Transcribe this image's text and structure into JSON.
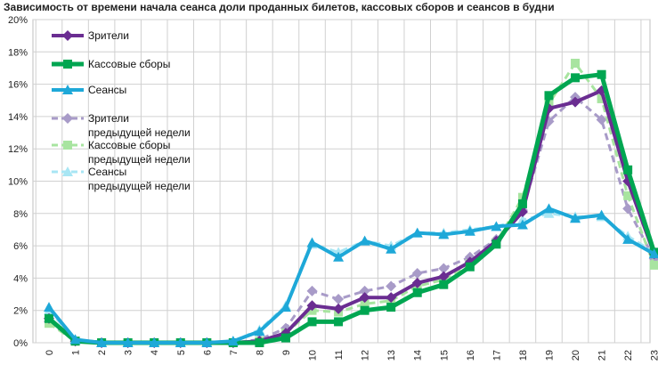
{
  "chart_data": {
    "type": "line",
    "title": "Зависимость от времени начала сеанса доли проданных билетов, кассовых сборов и сеансов в будни",
    "xlabel": "",
    "ylabel": "",
    "ylim": [
      0,
      20
    ],
    "y_ticks": [
      "0%",
      "2%",
      "4%",
      "6%",
      "8%",
      "10%",
      "12%",
      "14%",
      "16%",
      "18%",
      "20%"
    ],
    "categories": [
      "0",
      "1",
      "2",
      "3",
      "4",
      "5",
      "6",
      "7",
      "8",
      "9",
      "10",
      "11",
      "12",
      "13",
      "14",
      "15",
      "16",
      "17",
      "18",
      "19",
      "20",
      "21",
      "22",
      "23"
    ],
    "grid": true,
    "legend_position": "top-left",
    "series": [
      {
        "name": "Зрители",
        "legend_lines": [
          "Зрители"
        ],
        "color": "#6a2d91",
        "marker": "diamond",
        "dashed": false,
        "width": 4,
        "values": [
          1.5,
          0.1,
          0,
          0,
          0,
          0,
          0,
          0,
          0.1,
          0.6,
          2.3,
          2.1,
          2.8,
          2.8,
          3.7,
          4.1,
          5.0,
          6.3,
          8.1,
          14.5,
          14.9,
          15.6,
          10.0,
          5.5
        ]
      },
      {
        "name": "Кассовые сборы",
        "legend_lines": [
          "Кассовые сборы"
        ],
        "color": "#00a651",
        "marker": "square",
        "dashed": false,
        "width": 5,
        "values": [
          1.5,
          0.1,
          0,
          0,
          0,
          0,
          0,
          0,
          0,
          0.3,
          1.3,
          1.3,
          2.0,
          2.2,
          3.1,
          3.6,
          4.7,
          6.1,
          8.6,
          15.3,
          16.4,
          16.6,
          10.7,
          5.6
        ]
      },
      {
        "name": "Сеансы",
        "legend_lines": [
          "Сеансы"
        ],
        "color": "#1ea8d8",
        "marker": "triangle",
        "dashed": false,
        "width": 4,
        "values": [
          2.2,
          0.2,
          0,
          0,
          0,
          0,
          0,
          0.1,
          0.7,
          2.2,
          6.2,
          5.3,
          6.3,
          5.8,
          6.8,
          6.7,
          6.9,
          7.2,
          7.3,
          8.3,
          7.7,
          7.9,
          6.4,
          5.5
        ]
      },
      {
        "name": "Зрители предыдущей недели",
        "legend_lines": [
          "Зрители",
          "предыдущей недели"
        ],
        "color": "#a89bc8",
        "marker": "diamond",
        "dashed": true,
        "width": 3,
        "values": [
          1.3,
          0.1,
          0,
          0,
          0,
          0,
          0,
          0,
          0.2,
          0.9,
          3.2,
          2.7,
          3.2,
          3.5,
          4.3,
          4.6,
          5.3,
          6.4,
          8.2,
          13.7,
          15.2,
          13.8,
          8.3,
          5.2
        ]
      },
      {
        "name": "Кассовые сборы предыдущей недели",
        "legend_lines": [
          "Кассовые сборы",
          "предыдущей недели"
        ],
        "color": "#a8e4a0",
        "marker": "square",
        "dashed": true,
        "width": 3,
        "values": [
          1.2,
          0.1,
          0,
          0,
          0,
          0,
          0,
          0,
          0.1,
          0.6,
          2.0,
          1.9,
          2.4,
          2.6,
          3.5,
          3.9,
          4.9,
          6.2,
          9.0,
          14.8,
          17.3,
          15.1,
          9.1,
          4.8
        ]
      },
      {
        "name": "Сеансы предыдущей недели",
        "legend_lines": [
          "Сеансы",
          "предыдущей недели"
        ],
        "color": "#a8e6f4",
        "marker": "triangle",
        "dashed": true,
        "width": 3,
        "values": [
          2.0,
          0.2,
          0,
          0,
          0,
          0,
          0,
          0.1,
          0.8,
          2.3,
          6.1,
          5.6,
          6.3,
          6.0,
          6.8,
          6.8,
          7.0,
          7.2,
          7.6,
          8.0,
          7.8,
          7.8,
          6.6,
          5.6
        ]
      }
    ]
  }
}
